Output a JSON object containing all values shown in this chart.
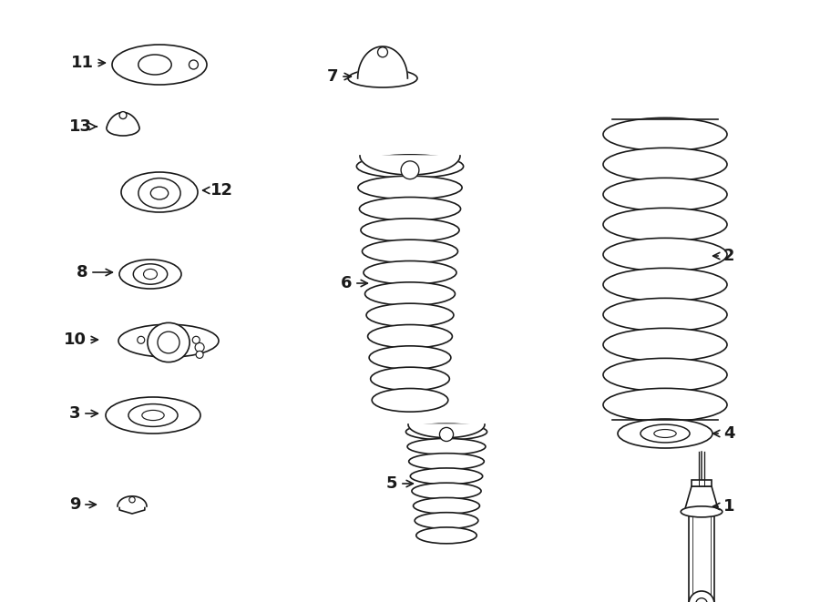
{
  "bg_color": "#ffffff",
  "line_color": "#1a1a1a",
  "label_color": "#000000",
  "fig_width": 9.0,
  "fig_height": 6.61
}
